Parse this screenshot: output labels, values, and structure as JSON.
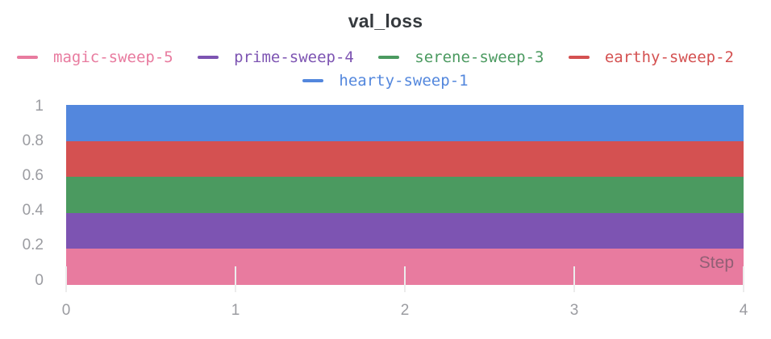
{
  "chart_data": {
    "type": "line",
    "title": "val_loss",
    "xlabel": "Step",
    "ylabel": "",
    "xlim": [
      0,
      4
    ],
    "ylim": [
      0,
      1
    ],
    "grid": "off",
    "legend_position": "top",
    "x_ticks": [
      {
        "value": 0,
        "label": "0"
      },
      {
        "value": 1,
        "label": "1"
      },
      {
        "value": 2,
        "label": "2"
      },
      {
        "value": 3,
        "label": "3"
      },
      {
        "value": 4,
        "label": "4"
      }
    ],
    "y_ticks": [
      {
        "value": 0,
        "label": "0"
      },
      {
        "value": 0.2,
        "label": "0.2"
      },
      {
        "value": 0.4,
        "label": "0.4"
      },
      {
        "value": 0.6,
        "label": "0.6"
      },
      {
        "value": 0.8,
        "label": "0.8"
      },
      {
        "value": 1,
        "label": "1"
      }
    ],
    "legend_rows": [
      [
        "magic-sweep-5",
        "prime-sweep-4",
        "serene-sweep-3",
        "earthy-sweep-2"
      ],
      [
        "hearty-sweep-1"
      ]
    ],
    "series": [
      {
        "name": "magic-sweep-5",
        "color": "#e87b9f",
        "x": [
          0,
          4
        ],
        "constant_value": 0.1,
        "visible_band": [
          0.0,
          0.2
        ]
      },
      {
        "name": "prime-sweep-4",
        "color": "#7d54b2",
        "x": [
          0,
          4
        ],
        "constant_value": 0.3,
        "visible_band": [
          0.2,
          0.4
        ]
      },
      {
        "name": "serene-sweep-3",
        "color": "#4b9a60",
        "x": [
          0,
          4
        ],
        "constant_value": 0.5,
        "visible_band": [
          0.4,
          0.6
        ]
      },
      {
        "name": "earthy-sweep-2",
        "color": "#d45151",
        "x": [
          0,
          4
        ],
        "constant_value": 0.7,
        "visible_band": [
          0.6,
          0.8
        ]
      },
      {
        "name": "hearty-sweep-1",
        "color": "#5387dd",
        "x": [
          0,
          4
        ],
        "constant_value": 0.9,
        "visible_band": [
          0.8,
          1.0
        ]
      }
    ],
    "colors": {
      "title": "#363a3e",
      "tick_label": "#9b9ca1",
      "axis_tick_line": "#ececec",
      "background": "#ffffff"
    }
  }
}
